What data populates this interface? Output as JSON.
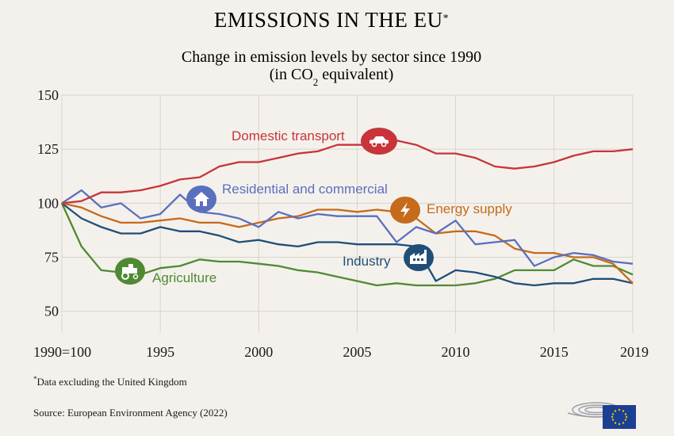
{
  "title": "EMISSIONS IN THE EU",
  "title_footnote_mark": "*",
  "subtitle_line1": "Change in emission levels by sector since 1990",
  "subtitle_line2_pre": "(in CO",
  "subtitle_line2_sub": "2",
  "subtitle_line2_post": " equivalent)",
  "footnote_mark": "*",
  "footnote": "Data excluding the United Kingdom",
  "source": "Source: European Environment Agency (2022)",
  "chart_data": {
    "type": "line",
    "title": "EMISSIONS IN THE EU*",
    "subtitle": "Change in emission levels by sector since 1990 (in CO2 equivalent)",
    "xlabel": "",
    "ylabel": "",
    "xlim": [
      1990,
      2019
    ],
    "ylim": [
      40,
      150
    ],
    "y_ticks": [
      50,
      75,
      100,
      125,
      150
    ],
    "x_ticks": [
      1990,
      1995,
      2000,
      2005,
      2010,
      2015,
      2019
    ],
    "x_tick_labels": [
      "1990=100",
      "1995",
      "2000",
      "2005",
      "2010",
      "2015",
      "2019"
    ],
    "grid": true,
    "x": [
      1990,
      1991,
      1992,
      1993,
      1994,
      1995,
      1996,
      1997,
      1998,
      1999,
      2000,
      2001,
      2002,
      2003,
      2004,
      2005,
      2006,
      2007,
      2008,
      2009,
      2010,
      2011,
      2012,
      2013,
      2014,
      2015,
      2016,
      2017,
      2018,
      2019
    ],
    "series": [
      {
        "name": "Domestic transport",
        "color": "#c8343a",
        "icon": "car-icon",
        "values": [
          100,
          101,
          105,
          105,
          106,
          108,
          111,
          112,
          117,
          119,
          119,
          121,
          123,
          124,
          127,
          127,
          127,
          129,
          127,
          123,
          123,
          121,
          117,
          116,
          117,
          119,
          122,
          124,
          124,
          125
        ]
      },
      {
        "name": "Residential and commercial",
        "color": "#5b6fbf",
        "icon": "house-icon",
        "values": [
          100,
          106,
          98,
          100,
          93,
          95,
          104,
          96,
          95,
          93,
          89,
          96,
          93,
          95,
          94,
          94,
          94,
          82,
          89,
          86,
          92,
          81,
          82,
          83,
          71,
          75,
          77,
          76,
          73,
          72
        ]
      },
      {
        "name": "Energy supply",
        "color": "#c66a1c",
        "icon": "lightning-icon",
        "values": [
          100,
          98,
          94,
          91,
          91,
          92,
          93,
          91,
          91,
          89,
          91,
          93,
          94,
          97,
          97,
          96,
          97,
          96,
          93,
          86,
          87,
          87,
          85,
          79,
          77,
          77,
          75,
          75,
          72,
          63
        ]
      },
      {
        "name": "Industry",
        "color": "#1f4f78",
        "icon": "factory-icon",
        "values": [
          100,
          93,
          89,
          86,
          86,
          89,
          87,
          87,
          85,
          82,
          83,
          81,
          80,
          82,
          82,
          81,
          81,
          81,
          80,
          64,
          69,
          68,
          66,
          63,
          62,
          63,
          63,
          65,
          65,
          63
        ]
      },
      {
        "name": "Agriculture",
        "color": "#4f8a32",
        "icon": "tractor-icon",
        "values": [
          100,
          80,
          69,
          68,
          67,
          70,
          71,
          74,
          73,
          73,
          72,
          71,
          69,
          68,
          66,
          64,
          62,
          63,
          62,
          62,
          62,
          63,
          65,
          69,
          69,
          69,
          74,
          71,
          71,
          67
        ]
      }
    ]
  }
}
